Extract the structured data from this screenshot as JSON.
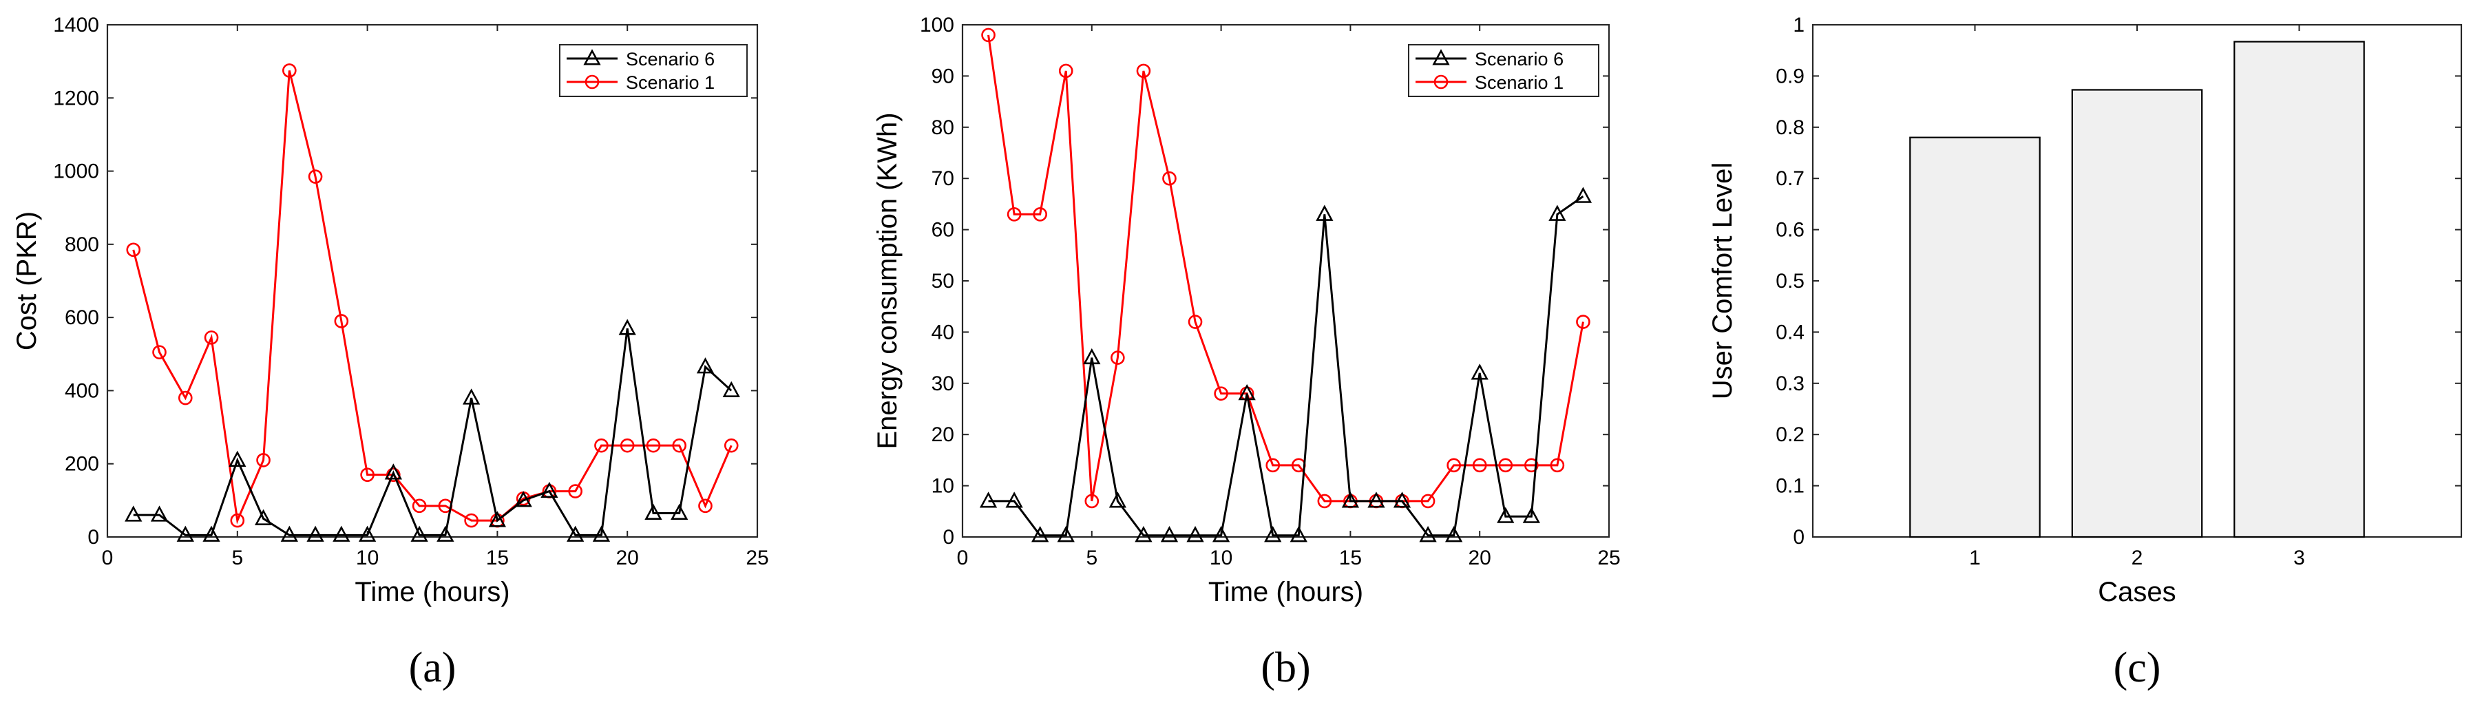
{
  "chart_data": [
    {
      "type": "line",
      "caption": "(a)",
      "xlabel": "Time (hours)",
      "ylabel": "Cost (PKR)",
      "xlim": [
        0,
        25
      ],
      "ylim": [
        0,
        1400
      ],
      "xticks": [
        0,
        5,
        10,
        15,
        20,
        25
      ],
      "yticks": [
        0,
        200,
        400,
        600,
        800,
        1000,
        1200,
        1400
      ],
      "x": [
        1,
        2,
        3,
        4,
        5,
        6,
        7,
        8,
        9,
        10,
        11,
        12,
        13,
        14,
        15,
        16,
        17,
        18,
        19,
        20,
        21,
        22,
        23,
        24
      ],
      "legend_position": "top-right",
      "series": [
        {
          "name": "Scenario 6",
          "color": "#000000",
          "marker": "triangle",
          "values": [
            60,
            60,
            5,
            5,
            210,
            50,
            5,
            5,
            5,
            5,
            175,
            5,
            5,
            380,
            45,
            100,
            125,
            5,
            5,
            570,
            65,
            65,
            465,
            400
          ]
        },
        {
          "name": "Scenario 1",
          "color": "#ff0000",
          "marker": "circle",
          "values": [
            785,
            505,
            380,
            545,
            45,
            210,
            1275,
            985,
            590,
            170,
            170,
            85,
            85,
            45,
            45,
            105,
            125,
            125,
            250,
            250,
            250,
            250,
            85,
            250
          ]
        }
      ]
    },
    {
      "type": "line",
      "caption": "(b)",
      "xlabel": "Time (hours)",
      "ylabel": "Energy consumption (KWh)",
      "xlim": [
        0,
        25
      ],
      "ylim": [
        0,
        100
      ],
      "xticks": [
        0,
        5,
        10,
        15,
        20,
        25
      ],
      "yticks": [
        0,
        10,
        20,
        30,
        40,
        50,
        60,
        70,
        80,
        90,
        100
      ],
      "x": [
        1,
        2,
        3,
        4,
        5,
        6,
        7,
        8,
        9,
        10,
        11,
        12,
        13,
        14,
        15,
        16,
        17,
        18,
        19,
        20,
        21,
        22,
        23,
        24
      ],
      "legend_position": "top-right",
      "series": [
        {
          "name": "Scenario 6",
          "color": "#000000",
          "marker": "triangle",
          "values": [
            7,
            7,
            0.3,
            0.3,
            35,
            7,
            0.3,
            0.3,
            0.3,
            0.3,
            28,
            0.3,
            0.3,
            63,
            7,
            7,
            7,
            0.3,
            0.3,
            32,
            4,
            4,
            63,
            66.5
          ]
        },
        {
          "name": "Scenario 1",
          "color": "#ff0000",
          "marker": "circle",
          "values": [
            98,
            63,
            63,
            91,
            7,
            35,
            91,
            70,
            42,
            28,
            28,
            14,
            14,
            7,
            7,
            7,
            7,
            7,
            14,
            14,
            14,
            14,
            14,
            42
          ]
        }
      ]
    },
    {
      "type": "bar",
      "caption": "(c)",
      "xlabel": "Cases",
      "ylabel": "User Comfort Level",
      "categories": [
        "1",
        "2",
        "3"
      ],
      "values": [
        0.78,
        0.873,
        0.967
      ],
      "ylim": [
        0,
        1
      ],
      "yticks": [
        0,
        0.1,
        0.2,
        0.3,
        0.4,
        0.5,
        0.6,
        0.7,
        0.8,
        0.9,
        1
      ],
      "ytick_labels": [
        "0",
        "0.1",
        "0.2",
        "0.3",
        "0.4",
        "0.5",
        "0.6",
        "0.7",
        "0.8",
        "0.9",
        "1"
      ],
      "bar_color": "#f0f0f0"
    }
  ]
}
